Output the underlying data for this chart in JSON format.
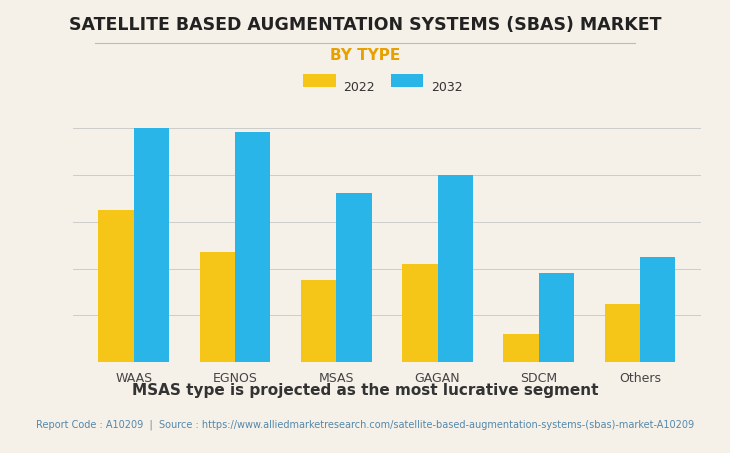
{
  "categories": [
    "WAAS",
    "EGNOS",
    "MSAS",
    "GAGAN",
    "SDCM",
    "Others"
  ],
  "values_2022": [
    65,
    47,
    35,
    42,
    12,
    25
  ],
  "values_2032": [
    100,
    98,
    72,
    80,
    38,
    45
  ],
  "color_2022": "#F5C518",
  "color_2032": "#29B5E8",
  "title": "SATELLITE BASED AUGMENTATION SYSTEMS (SBAS) MARKET",
  "subtitle": "BY TYPE",
  "legend_labels": [
    "2022",
    "2032"
  ],
  "footnote": "MSAS type is projected as the most lucrative segment",
  "source_text": "Report Code : A10209  |  Source : https://www.alliedmarketresearch.com/satellite-based-augmentation-systems-(sbas)-market-A10209",
  "background_color": "#F5F0E8",
  "grid_color": "#CCCCCC",
  "title_color": "#222222",
  "subtitle_color": "#E8A000",
  "footnote_color": "#333333",
  "source_color": "#5588AA",
  "ylim": [
    0,
    110
  ],
  "bar_width": 0.35,
  "title_fontsize": 12.5,
  "subtitle_fontsize": 11,
  "footnote_fontsize": 11,
  "source_fontsize": 7,
  "tick_fontsize": 9,
  "legend_fontsize": 9
}
